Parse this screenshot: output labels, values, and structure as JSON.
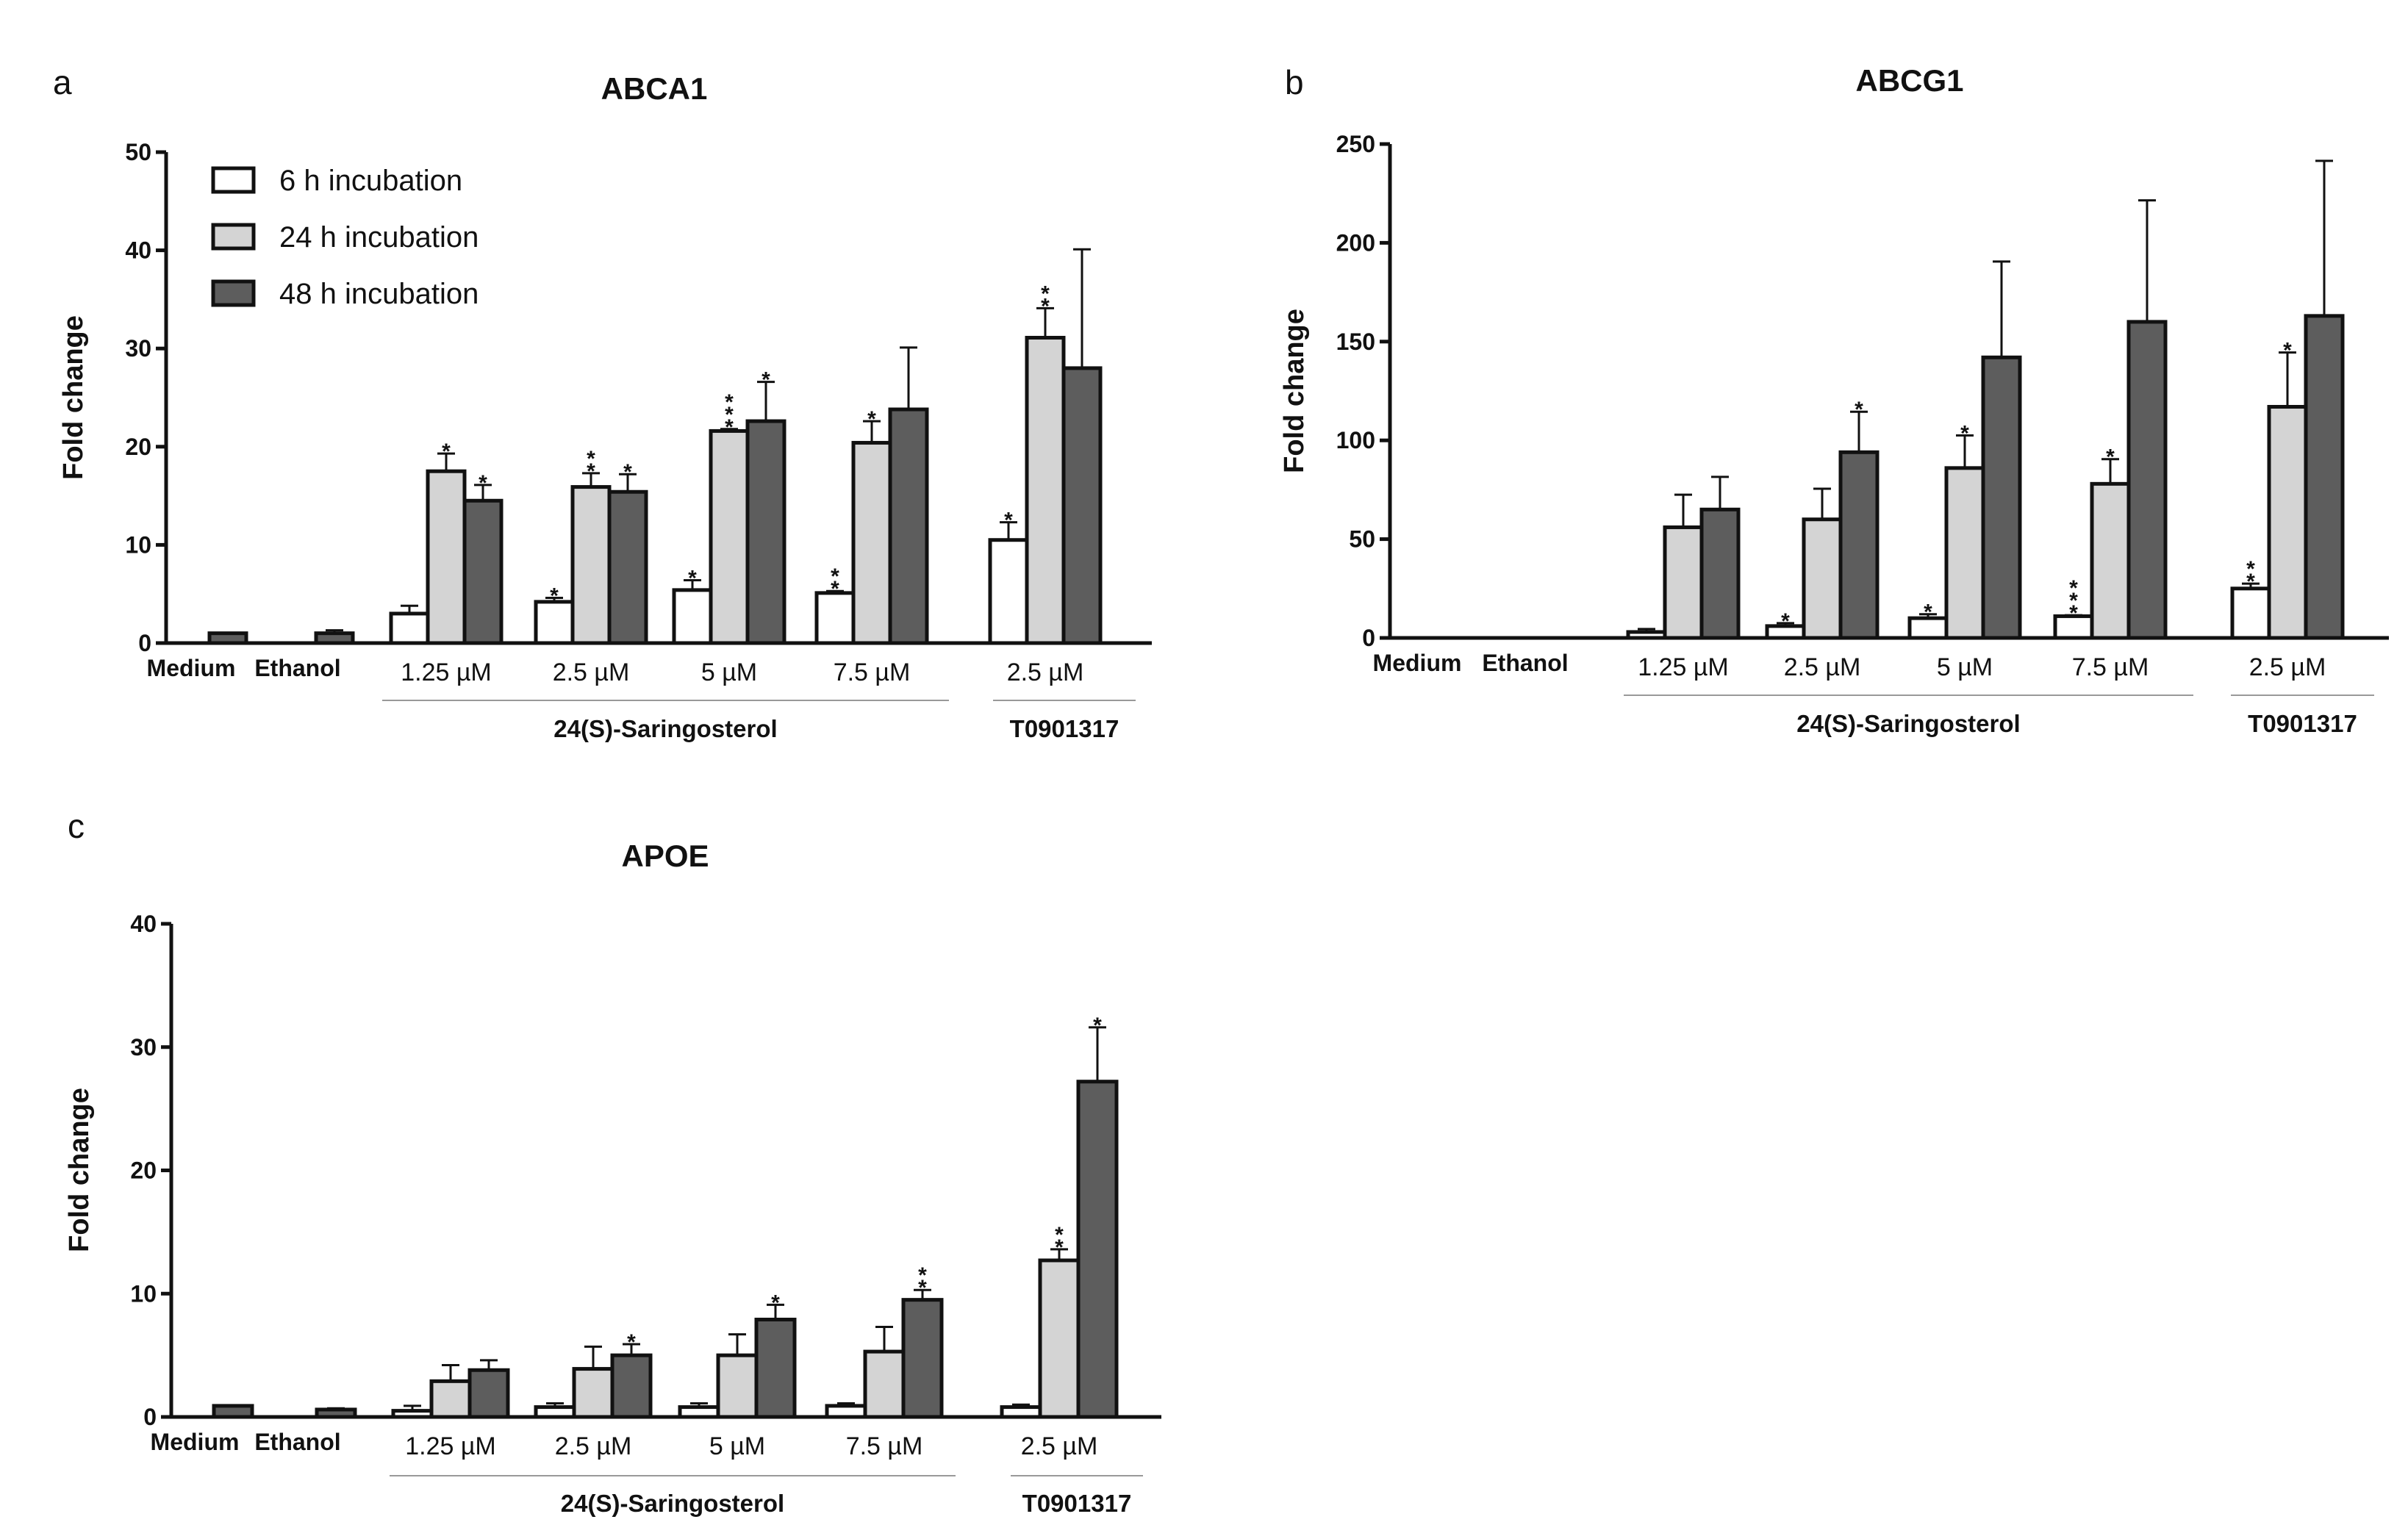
{
  "figure": {
    "panel_letters": [
      "a",
      "b",
      "c"
    ],
    "legend": [
      {
        "label": "6 h incubation",
        "color": "#ffffff"
      },
      {
        "label": "24 h incubation",
        "color": "#d4d4d4"
      },
      {
        "label": "48 h incubation",
        "color": "#5d5d5d"
      }
    ],
    "colors": {
      "h6": "#ffffff",
      "h24": "#d4d4d4",
      "h48": "#5d5d5d",
      "stroke": "#111111"
    }
  },
  "chart_data": [
    {
      "panel": "a",
      "type": "bar",
      "title": "ABCA1",
      "ylabel": "Fold change",
      "xlabel": "",
      "ylim": [
        0,
        50
      ],
      "yticks": [
        0,
        10,
        20,
        30,
        40,
        50
      ],
      "categories": [
        "Medium",
        "Ethanol",
        "1.25 µM",
        "2.5 µM",
        "5 µM",
        "7.5 µM",
        "2.5 µM"
      ],
      "groups": [
        {
          "label": "24(S)-Saringosterol",
          "categories": [
            "1.25 µM",
            "2.5 µM",
            "5 µM",
            "7.5 µM"
          ]
        },
        {
          "label": "T0901317",
          "categories": [
            "2.5 µM"
          ]
        }
      ],
      "series": [
        {
          "name": "6 h incubation",
          "values": [
            null,
            null,
            3.0,
            4.2,
            5.4,
            5.1,
            10.5
          ],
          "errors": [
            null,
            null,
            0.8,
            0.4,
            1.0,
            0.2,
            1.8
          ],
          "sig": [
            "",
            "",
            "",
            "*",
            "*",
            "**",
            "*"
          ]
        },
        {
          "name": "24 h incubation",
          "values": [
            null,
            null,
            17.5,
            15.9,
            21.6,
            20.4,
            31.1
          ],
          "errors": [
            null,
            null,
            1.8,
            1.4,
            0.2,
            2.2,
            3.0
          ],
          "sig": [
            "",
            "",
            "*",
            "**",
            "***",
            "*",
            "**"
          ]
        },
        {
          "name": "48 h incubation",
          "values": [
            1.0,
            1.0,
            14.5,
            15.4,
            22.6,
            23.8,
            28.0
          ],
          "errors": [
            0.0,
            0.3,
            1.6,
            1.8,
            4.0,
            6.3,
            12.1
          ],
          "sig": [
            "",
            "",
            "*",
            "*",
            "*",
            "",
            ""
          ]
        }
      ]
    },
    {
      "panel": "b",
      "type": "bar",
      "title": "ABCG1",
      "ylabel": "Fold change",
      "xlabel": "",
      "ylim": [
        0,
        250
      ],
      "yticks": [
        0,
        50,
        100,
        150,
        200,
        250
      ],
      "categories": [
        "Medium",
        "Ethanol",
        "1.25 µM",
        "2.5 µM",
        "5 µM",
        "7.5 µM",
        "2.5 µM"
      ],
      "groups": [
        {
          "label": "24(S)-Saringosterol",
          "categories": [
            "1.25 µM",
            "2.5 µM",
            "5 µM",
            "7.5 µM"
          ]
        },
        {
          "label": "T0901317",
          "categories": [
            "2.5 µM"
          ]
        }
      ],
      "series": [
        {
          "name": "6 h incubation",
          "values": [
            null,
            null,
            3.0,
            6.0,
            10.0,
            11.0,
            25.0
          ],
          "errors": [
            null,
            null,
            1.5,
            1.5,
            2.0,
            0.5,
            2.5
          ],
          "sig": [
            "",
            "",
            "",
            "*",
            "*",
            "***",
            "**"
          ]
        },
        {
          "name": "24 h incubation",
          "values": [
            null,
            null,
            56.0,
            60.0,
            86.0,
            78.0,
            117.0
          ],
          "errors": [
            null,
            null,
            16.5,
            15.5,
            16.5,
            12.5,
            27.5
          ],
          "sig": [
            "",
            "",
            "",
            "",
            "*",
            "*",
            "*"
          ]
        },
        {
          "name": "48 h incubation",
          "values": [
            0.0,
            0.0,
            65.0,
            94.0,
            142.0,
            160.0,
            163.0
          ],
          "errors": [
            0.0,
            0.0,
            16.5,
            20.5,
            48.5,
            61.5,
            78.5
          ],
          "sig": [
            "",
            "",
            "",
            "*",
            "",
            "",
            ""
          ]
        }
      ]
    },
    {
      "panel": "c",
      "type": "bar",
      "title": "APOE",
      "ylabel": "Fold change",
      "xlabel": "",
      "ylim": [
        0,
        40
      ],
      "yticks": [
        0,
        10,
        20,
        30,
        40
      ],
      "categories": [
        "Medium",
        "Ethanol",
        "1.25 µM",
        "2.5 µM",
        "5 µM",
        "7.5 µM",
        "2.5 µM"
      ],
      "groups": [
        {
          "label": "24(S)-Saringosterol",
          "categories": [
            "1.25 µM",
            "2.5 µM",
            "5 µM",
            "7.5 µM"
          ]
        },
        {
          "label": "T0901317",
          "categories": [
            "2.5 µM"
          ]
        }
      ],
      "series": [
        {
          "name": "6 h incubation",
          "values": [
            null,
            null,
            0.5,
            0.8,
            0.8,
            0.9,
            0.8
          ],
          "errors": [
            null,
            null,
            0.4,
            0.3,
            0.3,
            0.2,
            0.2
          ],
          "sig": [
            "",
            "",
            "",
            "",
            "",
            "",
            ""
          ]
        },
        {
          "name": "24 h incubation",
          "values": [
            null,
            null,
            2.9,
            3.9,
            5.0,
            5.3,
            12.7
          ],
          "errors": [
            null,
            null,
            1.3,
            1.8,
            1.7,
            2.0,
            0.9
          ],
          "sig": [
            "",
            "",
            "",
            "",
            "",
            "",
            "**"
          ]
        },
        {
          "name": "48 h incubation",
          "values": [
            0.9,
            0.6,
            3.8,
            5.0,
            7.9,
            9.5,
            27.2
          ],
          "errors": [
            0.0,
            0.1,
            0.8,
            0.9,
            1.2,
            0.8,
            4.4
          ],
          "sig": [
            "",
            "",
            "",
            "*",
            "*",
            "**",
            "*"
          ]
        }
      ]
    }
  ]
}
